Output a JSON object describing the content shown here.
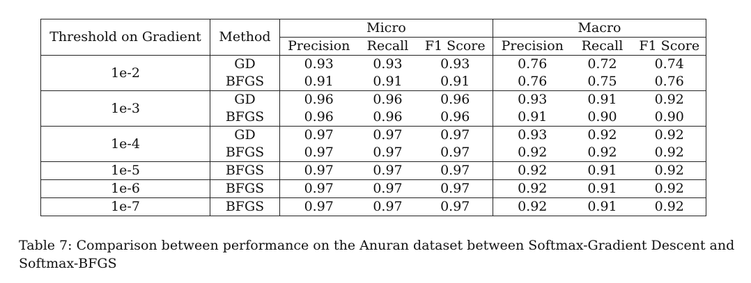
{
  "table": {
    "headers": {
      "threshold": "Threshold on Gradient",
      "method": "Method",
      "micro": "Micro",
      "macro": "Macro",
      "sub": [
        "Precision",
        "Recall",
        "F1 Score",
        "Precision",
        "Recall",
        "F1 Score"
      ]
    },
    "groups": [
      {
        "threshold": "1e-2",
        "rows": [
          {
            "method": "GD",
            "values": [
              "0.93",
              "0.93",
              "0.93",
              "0.76",
              "0.72",
              "0.74"
            ]
          },
          {
            "method": "BFGS",
            "values": [
              "0.91",
              "0.91",
              "0.91",
              "0.76",
              "0.75",
              "0.76"
            ]
          }
        ]
      },
      {
        "threshold": "1e-3",
        "rows": [
          {
            "method": "GD",
            "values": [
              "0.96",
              "0.96",
              "0.96",
              "0.93",
              "0.91",
              "0.92"
            ]
          },
          {
            "method": "BFGS",
            "values": [
              "0.96",
              "0.96",
              "0.96",
              "0.91",
              "0.90",
              "0.90"
            ]
          }
        ]
      },
      {
        "threshold": "1e-4",
        "rows": [
          {
            "method": "GD",
            "values": [
              "0.97",
              "0.97",
              "0.97",
              "0.93",
              "0.92",
              "0.92"
            ]
          },
          {
            "method": "BFGS",
            "values": [
              "0.97",
              "0.97",
              "0.97",
              "0.92",
              "0.92",
              "0.92"
            ]
          }
        ]
      },
      {
        "threshold": "1e-5",
        "rows": [
          {
            "method": "BFGS",
            "values": [
              "0.97",
              "0.97",
              "0.97",
              "0.92",
              "0.91",
              "0.92"
            ]
          }
        ]
      },
      {
        "threshold": "1e-6",
        "rows": [
          {
            "method": "BFGS",
            "values": [
              "0.97",
              "0.97",
              "0.97",
              "0.92",
              "0.91",
              "0.92"
            ]
          }
        ]
      },
      {
        "threshold": "1e-7",
        "rows": [
          {
            "method": "BFGS",
            "values": [
              "0.97",
              "0.97",
              "0.97",
              "0.92",
              "0.91",
              "0.92"
            ]
          }
        ]
      }
    ]
  },
  "caption": "Table 7: Comparison between performance on the Anuran dataset between Softmax-Gradient Descent and Softmax-BFGS"
}
